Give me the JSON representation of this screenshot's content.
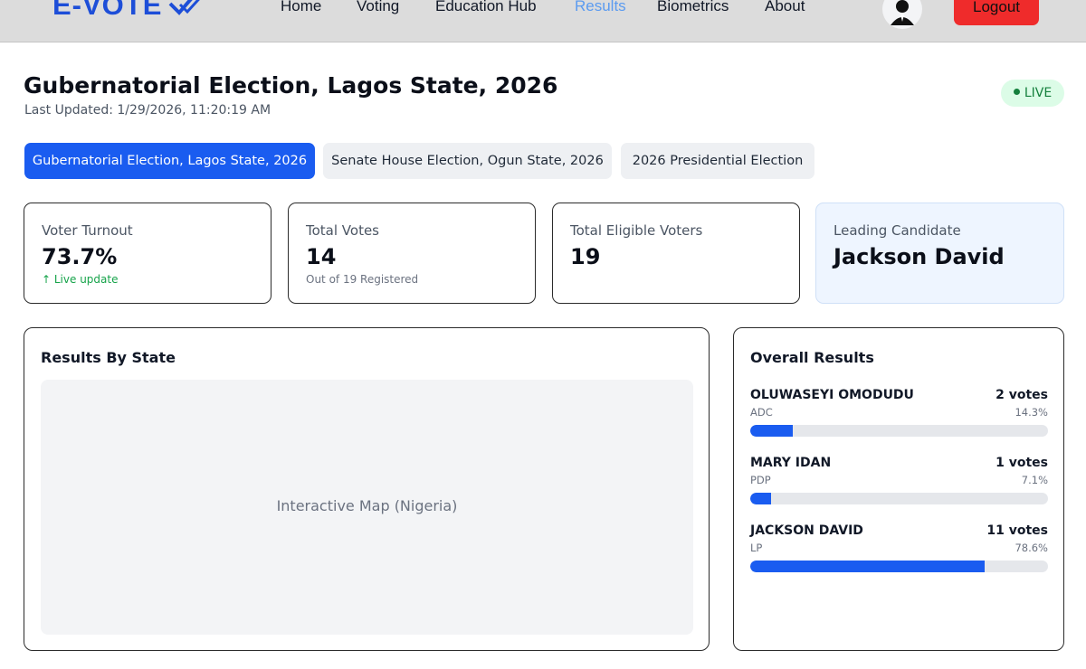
{
  "header": {
    "logo_text": "E-VOTE",
    "nav": [
      {
        "label": "Home"
      },
      {
        "label": "Voting"
      },
      {
        "label": "Education Hub"
      },
      {
        "label": "Results",
        "active": true
      },
      {
        "label": "Biometrics"
      },
      {
        "label": "About"
      }
    ],
    "logout_label": "Logout"
  },
  "page": {
    "title": "Gubernatorial Election, Lagos State, 2026",
    "last_updated": "Last Updated: 1/29/2026, 11:20:19 AM",
    "live_label": "LIVE"
  },
  "tabs": [
    {
      "label": "Gubernatorial Election, Lagos State, 2026",
      "active": true
    },
    {
      "label": "Senate House Election, Ogun State, 2026",
      "active": false
    },
    {
      "label": "2026 Presidential Election",
      "active": false
    }
  ],
  "stats": {
    "turnout": {
      "label": "Voter Turnout",
      "value": "73.7%",
      "sub": "↑ Live update"
    },
    "total_votes": {
      "label": "Total Votes",
      "value": "14",
      "sub": "Out of 19 Registered"
    },
    "eligible": {
      "label": "Total Eligible Voters",
      "value": "19"
    },
    "leading": {
      "label": "Leading Candidate",
      "value": "Jackson David"
    }
  },
  "map_panel": {
    "title": "Results By State",
    "placeholder": "Interactive Map (Nigeria)"
  },
  "results_panel": {
    "title": "Overall Results",
    "candidates": [
      {
        "name": "OLUWASEYI OMODUDU",
        "party": "ADC",
        "votes": "2 votes",
        "percent": "14.3%",
        "share": 0.143
      },
      {
        "name": "MARY IDAN",
        "party": "PDP",
        "votes": "1 votes",
        "percent": "7.1%",
        "share": 0.071
      },
      {
        "name": "JACKSON DAVID",
        "party": "LP",
        "votes": "11 votes",
        "percent": "78.6%",
        "share": 0.786
      }
    ]
  },
  "colors": {
    "accent": "#1a5cf0",
    "nav_active": "#5b9bf0",
    "logout": "#ef2b2b",
    "live_bg": "#dcfce7",
    "live_text": "#15803d"
  }
}
